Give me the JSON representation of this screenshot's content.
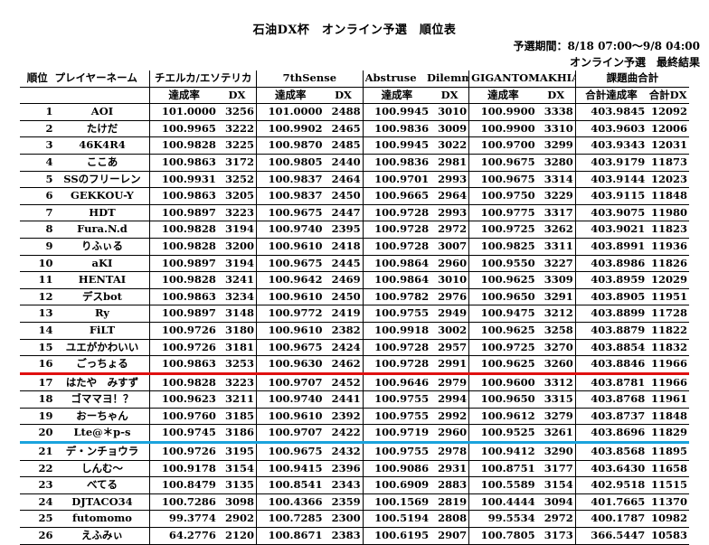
{
  "title": "石油DX杯　オンライン予選　順位表",
  "period": "予選期間：8/18 07:00～9/8 04:00",
  "subtitle": "オンライン予選　最終結果",
  "header": {
    "rank": "順位",
    "player": "プレイヤーネーム",
    "songs": [
      "チエルカ/エソテリカ",
      "7thSense",
      "Abstruse　Dilemma",
      "GIGANTOMAKHIA"
    ],
    "total": "課題曲合計",
    "rate": "達成率",
    "dx": "DX",
    "total_rate": "合計達成率",
    "total_dx": "合計DX"
  },
  "rows": [
    [
      "1",
      "AOI",
      "101.0000",
      "3256",
      "101.0000",
      "2488",
      "100.9945",
      "3010",
      "100.9900",
      "3338",
      "403.9845",
      "12092"
    ],
    [
      "2",
      "たけだ",
      "100.9965",
      "3222",
      "100.9902",
      "2465",
      "100.9836",
      "3009",
      "100.9900",
      "3310",
      "403.9603",
      "12006"
    ],
    [
      "3",
      "46K4R4",
      "100.9828",
      "3225",
      "100.9870",
      "2485",
      "100.9945",
      "3022",
      "100.9700",
      "3299",
      "403.9343",
      "12031"
    ],
    [
      "4",
      "ここあ",
      "100.9863",
      "3172",
      "100.9805",
      "2440",
      "100.9836",
      "2981",
      "100.9675",
      "3280",
      "403.9179",
      "11873"
    ],
    [
      "5",
      "SSのフリーレン",
      "100.9931",
      "3252",
      "100.9837",
      "2464",
      "100.9701",
      "2993",
      "100.9675",
      "3314",
      "403.9144",
      "12023"
    ],
    [
      "6",
      "GEKKOU-Y",
      "100.9863",
      "3205",
      "100.9837",
      "2450",
      "100.9665",
      "2964",
      "100.9750",
      "3229",
      "403.9115",
      "11848"
    ],
    [
      "7",
      "HDT",
      "100.9897",
      "3223",
      "100.9675",
      "2447",
      "100.9728",
      "2993",
      "100.9775",
      "3317",
      "403.9075",
      "11980"
    ],
    [
      "8",
      "Fura.N.d",
      "100.9828",
      "3194",
      "100.9740",
      "2395",
      "100.9728",
      "2972",
      "100.9725",
      "3262",
      "403.9021",
      "11823"
    ],
    [
      "9",
      "りふぃる",
      "100.9828",
      "3200",
      "100.9610",
      "2418",
      "100.9728",
      "3007",
      "100.9825",
      "3311",
      "403.8991",
      "11936"
    ],
    [
      "10",
      "aKI",
      "100.9897",
      "3194",
      "100.9675",
      "2445",
      "100.9864",
      "2960",
      "100.9550",
      "3227",
      "403.8986",
      "11826"
    ],
    [
      "11",
      "HENTAI",
      "100.9828",
      "3241",
      "100.9642",
      "2469",
      "100.9864",
      "3010",
      "100.9625",
      "3309",
      "403.8959",
      "12029"
    ],
    [
      "12",
      "デスbot",
      "100.9863",
      "3234",
      "100.9610",
      "2450",
      "100.9782",
      "2976",
      "100.9650",
      "3291",
      "403.8905",
      "11951"
    ],
    [
      "13",
      "Ry",
      "100.9897",
      "3148",
      "100.9772",
      "2419",
      "100.9755",
      "2949",
      "100.9475",
      "3212",
      "403.8899",
      "11728"
    ],
    [
      "14",
      "FiLT",
      "100.9726",
      "3180",
      "100.9610",
      "2382",
      "100.9918",
      "3002",
      "100.9625",
      "3258",
      "403.8879",
      "11822"
    ],
    [
      "15",
      "ユエがかわいい",
      "100.9726",
      "3181",
      "100.9675",
      "2424",
      "100.9728",
      "2957",
      "100.9725",
      "3270",
      "403.8854",
      "11832"
    ],
    [
      "16",
      "ごっちょる",
      "100.9863",
      "3253",
      "100.9630",
      "2462",
      "100.9728",
      "2991",
      "100.9625",
      "3260",
      "403.8846",
      "11966"
    ],
    [
      "17",
      "はたや　みすず",
      "100.9828",
      "3223",
      "100.9707",
      "2452",
      "100.9646",
      "2979",
      "100.9600",
      "3312",
      "403.8781",
      "11966"
    ],
    [
      "18",
      "ゴママヨ！？",
      "100.9623",
      "3211",
      "100.9740",
      "2441",
      "100.9755",
      "2994",
      "100.9650",
      "3315",
      "403.8768",
      "11961"
    ],
    [
      "19",
      "おーちゃん",
      "100.9760",
      "3185",
      "100.9610",
      "2392",
      "100.9755",
      "2992",
      "100.9612",
      "3279",
      "403.8737",
      "11848"
    ],
    [
      "20",
      "Lte@＊p-s",
      "100.9745",
      "3186",
      "100.9707",
      "2422",
      "100.9719",
      "2960",
      "100.9525",
      "3261",
      "403.8696",
      "11829"
    ],
    [
      "21",
      "デ・ンチョウラ",
      "100.9726",
      "3195",
      "100.9675",
      "2432",
      "100.9755",
      "2978",
      "100.9412",
      "3290",
      "403.8568",
      "11895"
    ],
    [
      "22",
      "しんむ～",
      "100.9178",
      "3154",
      "100.9415",
      "2396",
      "100.9086",
      "2931",
      "100.8751",
      "3177",
      "403.6430",
      "11658"
    ],
    [
      "23",
      "べてる",
      "100.8479",
      "3135",
      "100.8541",
      "2343",
      "100.6909",
      "2883",
      "100.5589",
      "3154",
      "402.9518",
      "11515"
    ],
    [
      "24",
      "DJTACO34",
      "100.7286",
      "3098",
      "100.4366",
      "2359",
      "100.1569",
      "2819",
      "100.4444",
      "3094",
      "401.7665",
      "11370"
    ],
    [
      "25",
      "futomomo",
      "99.3774",
      "2902",
      "100.7285",
      "2300",
      "100.5194",
      "2808",
      "99.5534",
      "2972",
      "400.1787",
      "10982"
    ],
    [
      "26",
      "えふみぃ",
      "64.2776",
      "2120",
      "100.8671",
      "2383",
      "100.6195",
      "2907",
      "100.7805",
      "3173",
      "366.5447",
      "10583"
    ]
  ]
}
